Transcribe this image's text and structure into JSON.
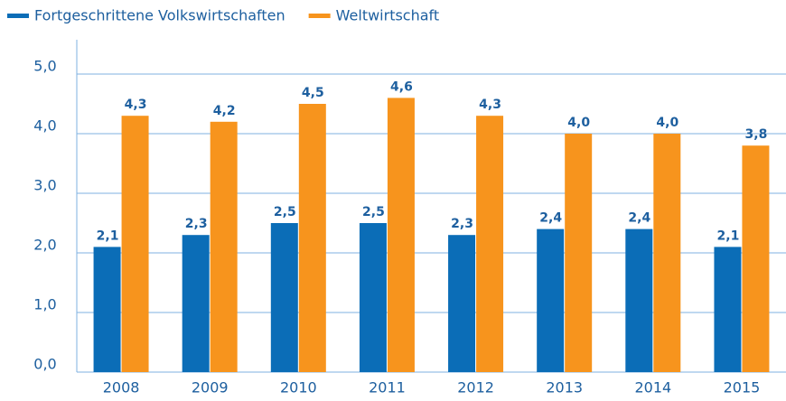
{
  "chart_data": {
    "type": "bar",
    "categories": [
      "2008",
      "2009",
      "2010",
      "2011",
      "2012",
      "2013",
      "2014",
      "2015"
    ],
    "series": [
      {
        "name": "Fortgeschrittene Volkswirtschaften",
        "color": "#0b6db7",
        "values": [
          2.1,
          2.3,
          2.5,
          2.5,
          2.3,
          2.4,
          2.4,
          2.1
        ],
        "value_labels": [
          "2,1",
          "2,3",
          "2,5",
          "2,5",
          "2,3",
          "2,4",
          "2,4",
          "2,1"
        ]
      },
      {
        "name": "Weltwirtschaft",
        "color": "#f7941d",
        "values": [
          4.3,
          4.2,
          4.5,
          4.6,
          4.3,
          4.0,
          4.0,
          3.8
        ],
        "value_labels": [
          "4,3",
          "4,2",
          "4,5",
          "4,6",
          "4,3",
          "4,0",
          "4,0",
          "3,8"
        ]
      }
    ],
    "ylim": [
      0,
      5
    ],
    "yticks": [
      {
        "value": 0,
        "label": "0,0"
      },
      {
        "value": 1,
        "label": "1,0"
      },
      {
        "value": 2,
        "label": "2,0"
      },
      {
        "value": 3,
        "label": "3,0"
      },
      {
        "value": 4,
        "label": "4,0"
      },
      {
        "value": 5,
        "label": "5,0"
      }
    ],
    "grid": true
  }
}
